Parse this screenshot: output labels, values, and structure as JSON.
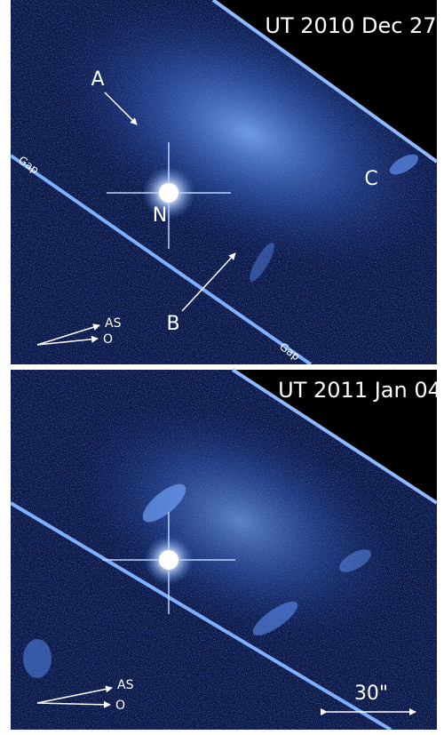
{
  "panels": [
    {
      "title": "UT 2010 Dec 27",
      "markers": [
        "A",
        "B",
        "C",
        "N"
      ],
      "gaps": [
        "Gap",
        "Gap"
      ],
      "compass": [
        "AS",
        "O"
      ]
    },
    {
      "title": "UT 2011 Jan 04",
      "compass": [
        "AS",
        "O"
      ],
      "scale": "30\""
    }
  ]
}
